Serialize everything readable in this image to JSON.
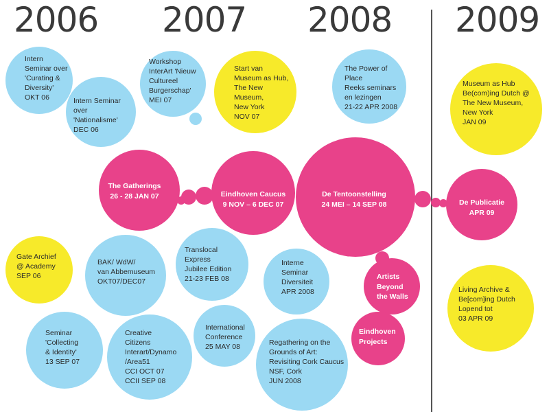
{
  "colors": {
    "pink": "#e8428a",
    "blue": "#9bd9f3",
    "yellow": "#f7ea2a",
    "year_text": "#3a3a3a",
    "divider": "#555555"
  },
  "years": [
    "2006",
    "2007",
    "2008",
    "2009"
  ],
  "bubbles": {
    "intern_seminar_curating": [
      "Intern",
      "Seminar over",
      "'Curating &",
      "Diversity'",
      "OKT 06"
    ],
    "intern_seminar_nationalisme": [
      "Intern Seminar",
      "over",
      "'Nationalisme'",
      "DEC 06"
    ],
    "workshop_interart": [
      "Workshop",
      "InterArt 'Nieuw",
      "Cultureel",
      "Burgerschap'",
      "MEI 07"
    ],
    "start_museum_hub": [
      "Start van",
      "Museum as Hub,",
      "The New",
      "Museum,",
      "New York",
      "NOV 07"
    ],
    "power_of_place": [
      "The Power of",
      "Place",
      "Reeks seminars",
      "en lezingen",
      "21-22 APR 2008"
    ],
    "museum_hub_becoming_dutch": [
      "Museum as Hub",
      "Be(com)ing Dutch @",
      "The New Museum,",
      "New York",
      "JAN 09"
    ],
    "the_gatherings": [
      "The Gatherings",
      "26 - 28 JAN 07"
    ],
    "eindhoven_caucus": [
      "Eindhoven Caucus",
      "9 NOV – 6 DEC 07"
    ],
    "de_tentoonstelling": [
      "De Tentoonstelling",
      "24 MEI – 14  SEP 08"
    ],
    "de_publicatie": [
      "De Publicatie",
      "APR 09"
    ],
    "gate_archief": [
      "Gate Archief",
      "@ Academy",
      "SEP 06"
    ],
    "bak_wdw": [
      "BAK/ WdW/",
      "van Abbemuseum",
      "OKT07/DEC07"
    ],
    "translocal_express": [
      "Translocal",
      "Express",
      "Jubilee Edition",
      "21-23 FEB 08"
    ],
    "interne_seminar_diversiteit": [
      "Interne",
      "Seminar",
      "Diversiteit",
      "APR 2008"
    ],
    "artists_beyond_walls": [
      "Artists",
      "Beyond",
      "the Walls"
    ],
    "eindhoven_projects": [
      "Eindhoven",
      "Projects"
    ],
    "living_archive": [
      "Living Archive &",
      "Be[com]ing Dutch",
      "Lopend tot",
      "03 APR 09"
    ],
    "seminar_collecting": [
      "Seminar",
      "'Collecting",
      "& Identity'",
      "13 SEP 07"
    ],
    "creative_citizens": [
      "Creative",
      "Citizens",
      "Interart/Dynamo",
      "/Area51",
      "CCI  OCT 07",
      "CCII SEP 08"
    ],
    "international_conference": [
      "International",
      "Conference",
      "25 MAY 08"
    ],
    "regathering": [
      "Regathering on the",
      "Grounds of Art:",
      "Revisiting Cork Caucus",
      "NSF, Cork",
      "JUN 2008"
    ]
  }
}
